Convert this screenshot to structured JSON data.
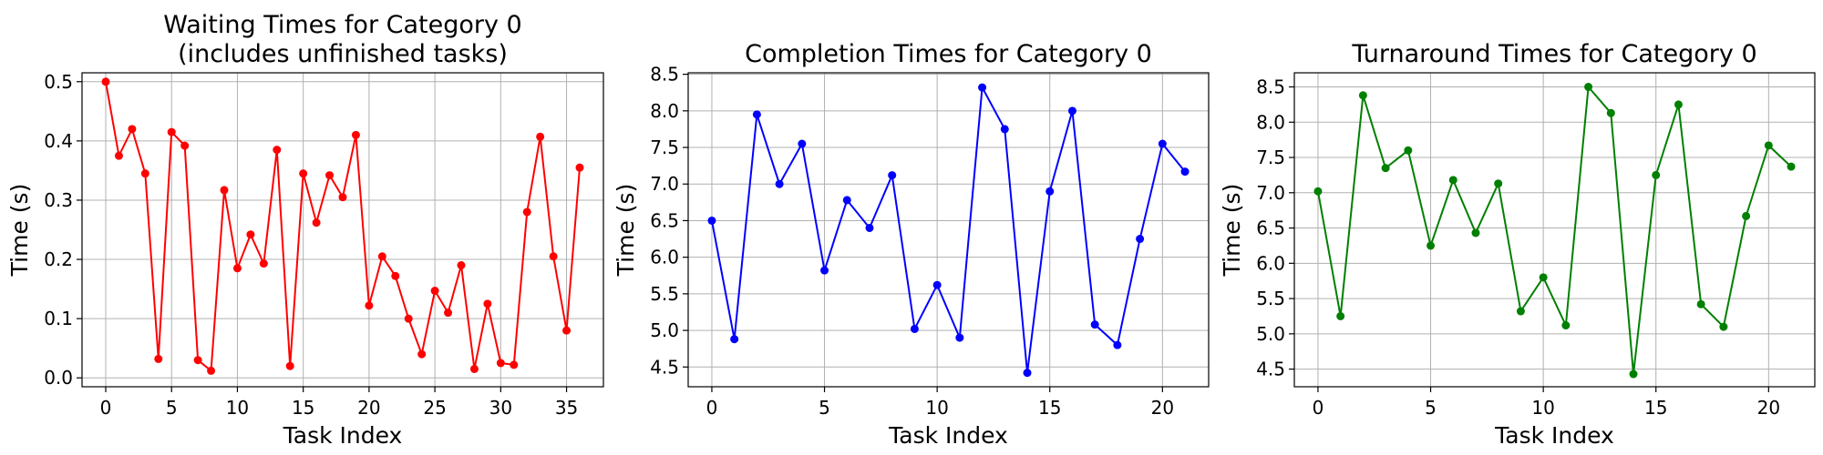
{
  "chart_data": [
    {
      "type": "line",
      "title_lines": [
        "Waiting Times for Category 0",
        "(includes unfinished tasks)"
      ],
      "xlabel": "Task Index",
      "ylabel": "Time (s)",
      "color": "#ff0000",
      "grid": true,
      "xlim": [
        -1.8,
        37.8
      ],
      "ylim": [
        -0.015,
        0.515
      ],
      "xticks": [
        0,
        5,
        10,
        15,
        20,
        25,
        30,
        35
      ],
      "yticks": [
        0.0,
        0.1,
        0.2,
        0.3,
        0.4,
        0.5
      ],
      "ytick_labels": [
        "0.0",
        "0.1",
        "0.2",
        "0.3",
        "0.4",
        "0.5"
      ],
      "x": [
        0,
        1,
        2,
        3,
        4,
        5,
        6,
        7,
        8,
        9,
        10,
        11,
        12,
        13,
        14,
        15,
        16,
        17,
        18,
        19,
        20,
        21,
        22,
        23,
        24,
        25,
        26,
        27,
        28,
        29,
        30,
        31,
        32,
        33,
        34,
        35,
        36
      ],
      "values": [
        0.5,
        0.375,
        0.42,
        0.345,
        0.032,
        0.415,
        0.392,
        0.03,
        0.012,
        0.317,
        0.185,
        0.242,
        0.193,
        0.385,
        0.02,
        0.345,
        0.262,
        0.342,
        0.305,
        0.41,
        0.122,
        0.205,
        0.172,
        0.1,
        0.04,
        0.147,
        0.11,
        0.19,
        0.015,
        0.125,
        0.025,
        0.022,
        0.28,
        0.407,
        0.205,
        0.08,
        0.355
      ]
    },
    {
      "type": "line",
      "title_lines": [
        "Completion Times for Category 0"
      ],
      "xlabel": "Task Index",
      "ylabel": "Time (s)",
      "color": "#0000ff",
      "grid": true,
      "xlim": [
        -1.05,
        22.05
      ],
      "ylim": [
        4.23,
        8.52
      ],
      "xticks": [
        0,
        5,
        10,
        15,
        20
      ],
      "yticks": [
        4.5,
        5.0,
        5.5,
        6.0,
        6.5,
        7.0,
        7.5,
        8.0,
        8.5
      ],
      "ytick_labels": [
        "4.5",
        "5.0",
        "5.5",
        "6.0",
        "6.5",
        "7.0",
        "7.5",
        "8.0",
        "8.5"
      ],
      "x": [
        0,
        1,
        2,
        3,
        4,
        5,
        6,
        7,
        8,
        9,
        10,
        11,
        12,
        13,
        14,
        15,
        16,
        17,
        18,
        19,
        20,
        21
      ],
      "values": [
        6.5,
        4.88,
        7.95,
        7.0,
        7.55,
        5.82,
        6.78,
        6.4,
        7.12,
        5.02,
        5.62,
        4.9,
        8.32,
        7.75,
        4.42,
        6.9,
        8.0,
        5.08,
        4.8,
        6.25,
        7.55,
        7.17
      ]
    },
    {
      "type": "line",
      "title_lines": [
        "Turnaround Times for Category 0"
      ],
      "xlabel": "Task Index",
      "ylabel": "Time (s)",
      "color": "#008000",
      "grid": true,
      "xlim": [
        -1.05,
        22.05
      ],
      "ylim": [
        4.25,
        8.7
      ],
      "xticks": [
        0,
        5,
        10,
        15,
        20
      ],
      "yticks": [
        4.5,
        5.0,
        5.5,
        6.0,
        6.5,
        7.0,
        7.5,
        8.0,
        8.5
      ],
      "ytick_labels": [
        "4.5",
        "5.0",
        "5.5",
        "6.0",
        "6.5",
        "7.0",
        "7.5",
        "8.0",
        "8.5"
      ],
      "x": [
        0,
        1,
        2,
        3,
        4,
        5,
        6,
        7,
        8,
        9,
        10,
        11,
        12,
        13,
        14,
        15,
        16,
        17,
        18,
        19,
        20,
        21
      ],
      "values": [
        7.02,
        5.25,
        8.38,
        7.35,
        7.6,
        6.25,
        7.18,
        6.43,
        7.13,
        5.32,
        5.8,
        5.12,
        8.5,
        8.13,
        4.43,
        7.25,
        8.25,
        5.42,
        5.1,
        6.67,
        7.67,
        7.37
      ]
    }
  ]
}
